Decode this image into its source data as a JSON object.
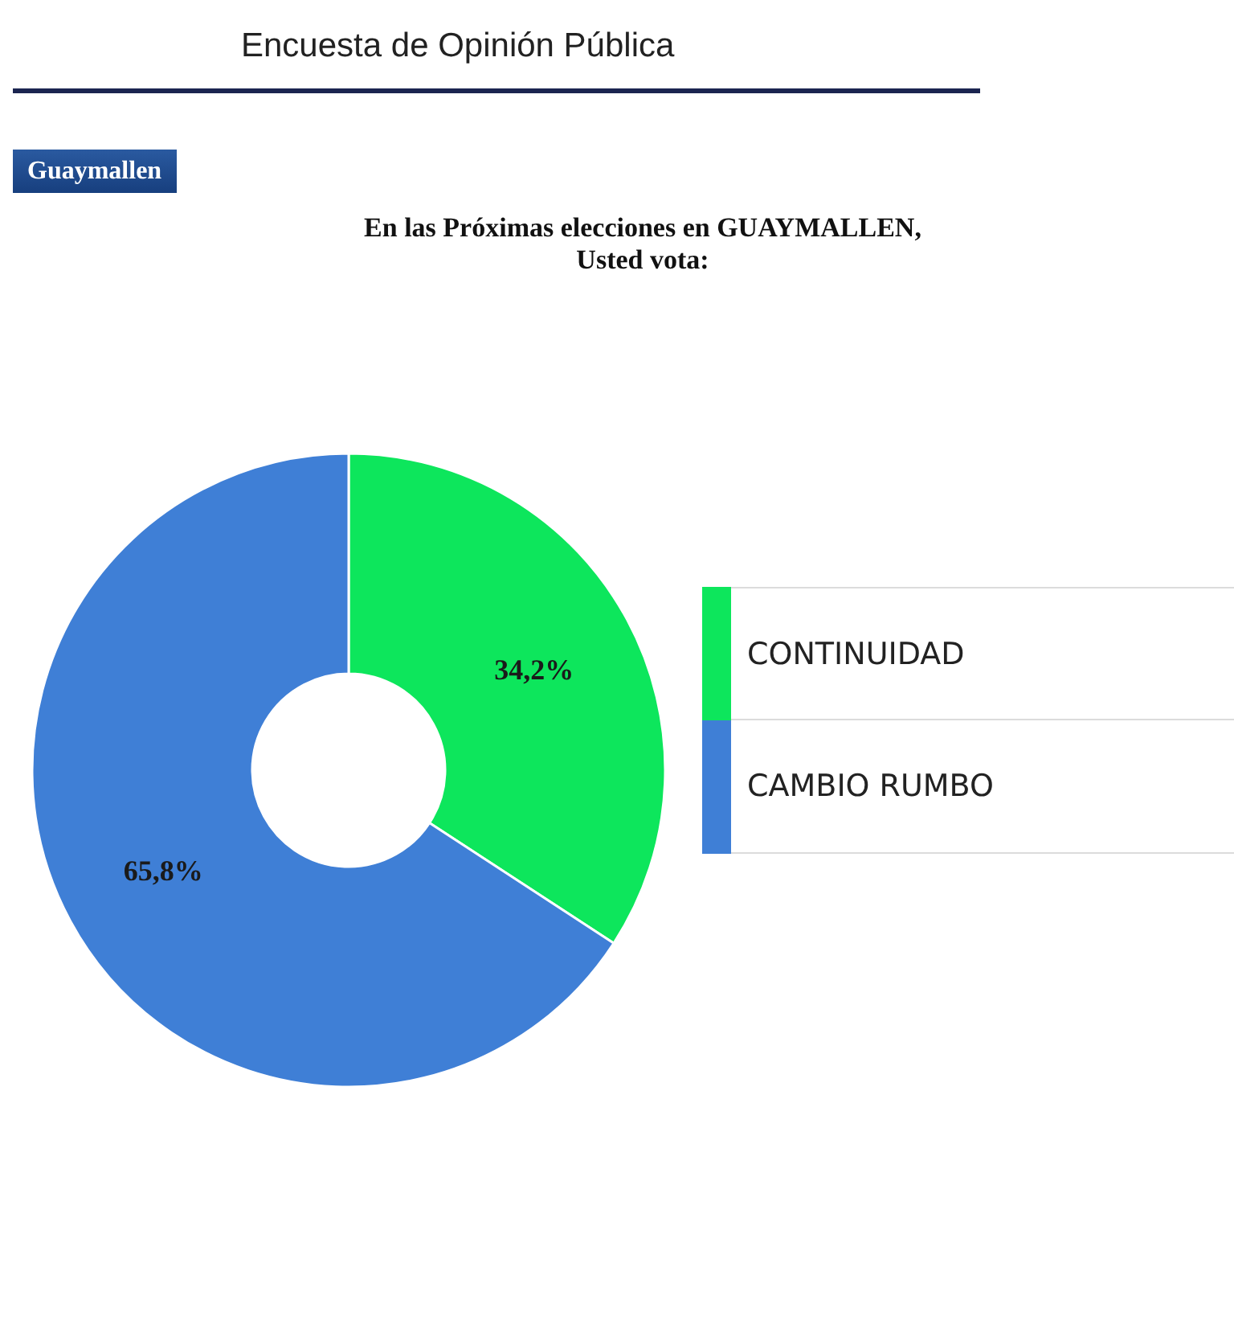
{
  "chart_data": {
    "type": "donut",
    "title": "En las Próximas elecciones en GUAYMALLEN,\nUsted vota:",
    "subtitle": "Encuesta de Opinión Pública",
    "annotations": [
      "Guaymallen"
    ],
    "categories": [
      "CONTINUIDAD",
      "CAMBIO RUMBO"
    ],
    "values": [
      34.2,
      65.8
    ],
    "colors": [
      "#0de65c",
      "#3f7fd6"
    ],
    "value_labels": [
      "34,2%",
      "65,8%"
    ],
    "legend": "right"
  }
}
